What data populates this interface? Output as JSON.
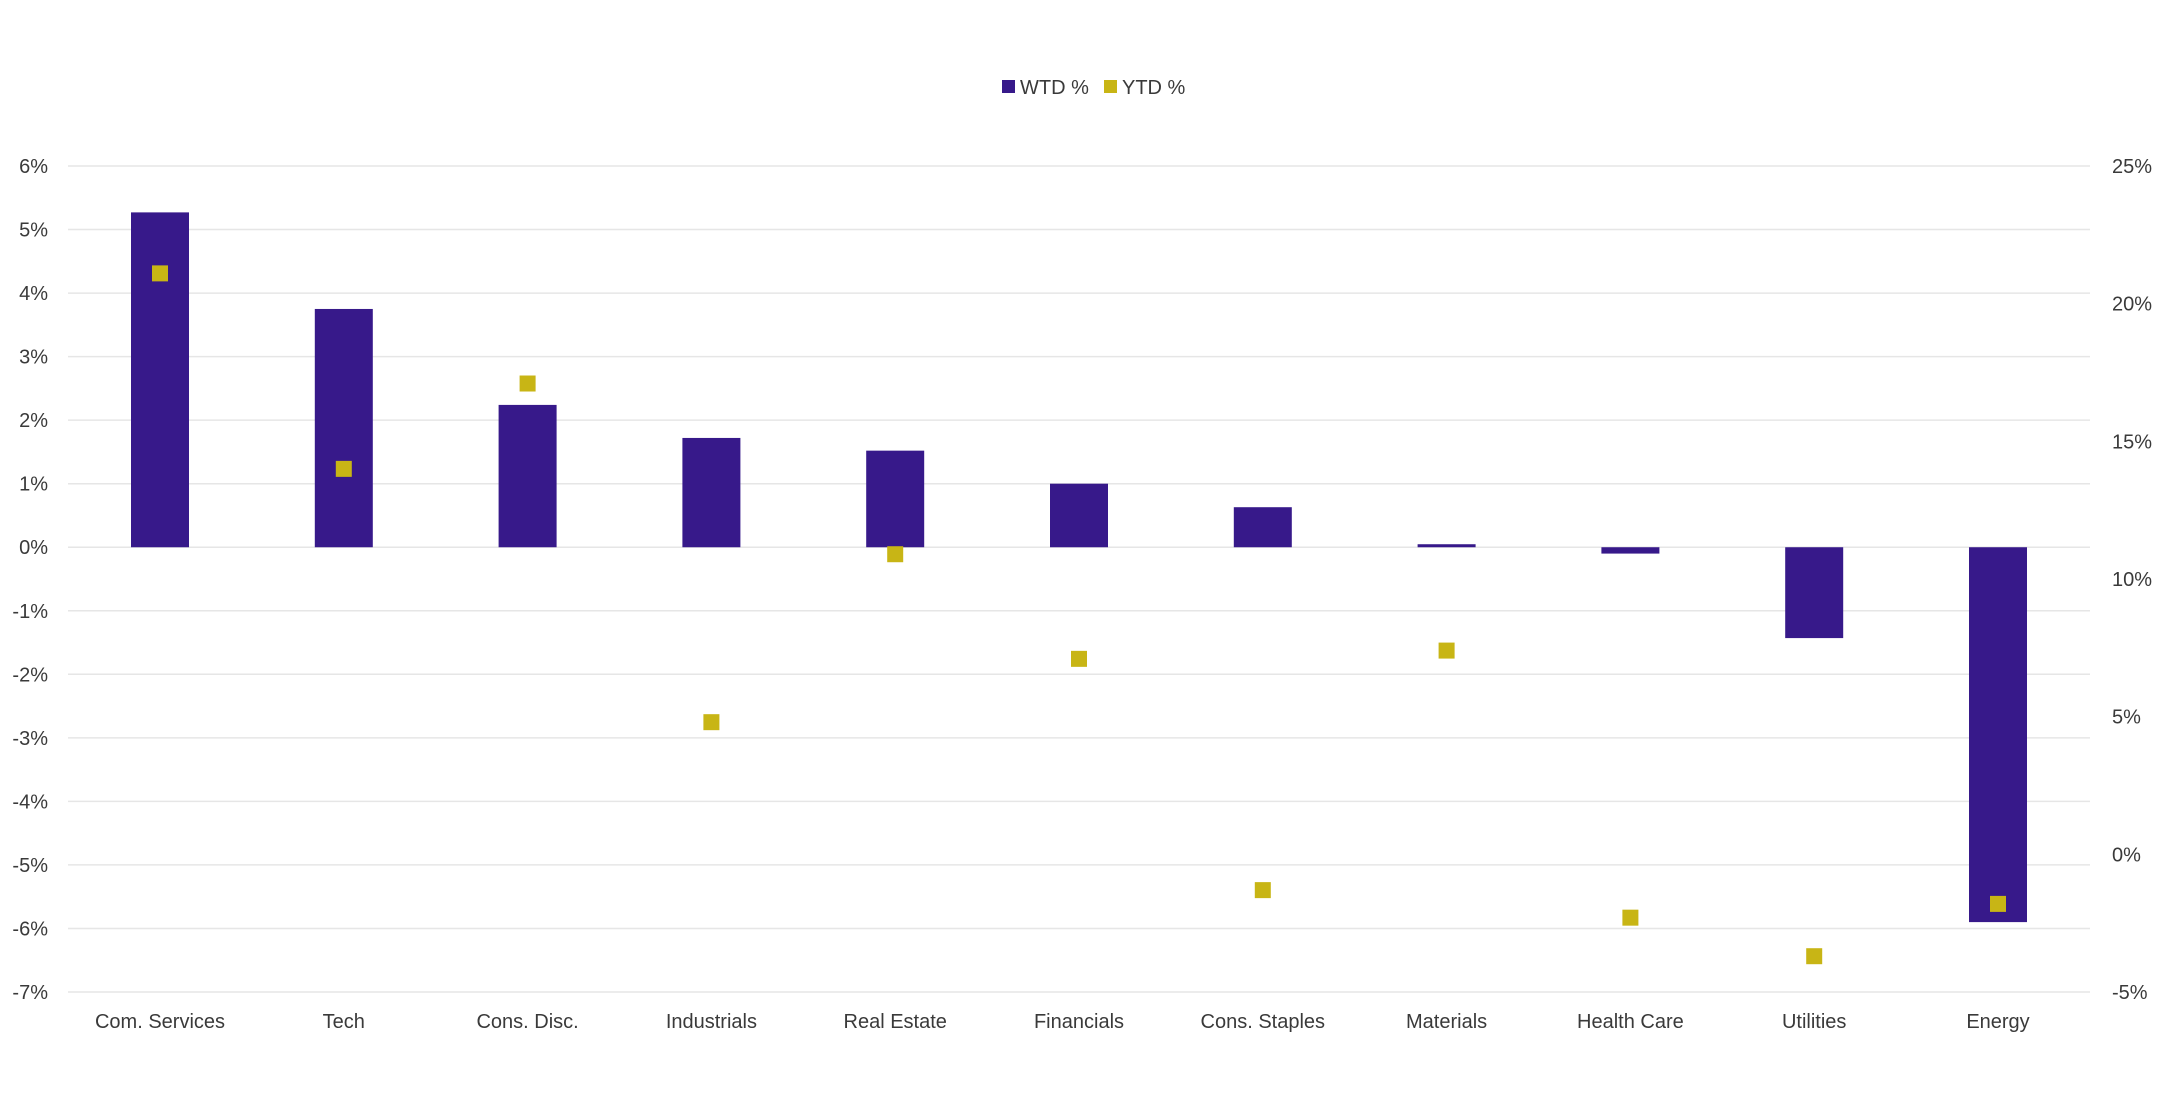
{
  "chart_data": {
    "type": "bar",
    "title": "",
    "legend": {
      "placement": "top-center",
      "entries": [
        {
          "label": "WTD %",
          "color": "#37198a",
          "marker": "square"
        },
        {
          "label": "YTD %",
          "color": "#c8b515",
          "marker": "square"
        }
      ]
    },
    "categories": [
      "Com. Services",
      "Tech",
      "Cons. Disc.",
      "Industrials",
      "Real Estate",
      "Financials",
      "Cons. Staples",
      "Materials",
      "Health Care",
      "Utilities",
      "Energy"
    ],
    "series": [
      {
        "name": "WTD %",
        "type": "bar",
        "axis": "left",
        "color": "#37198a",
        "values": [
          5.27,
          3.75,
          2.24,
          1.72,
          1.52,
          1.0,
          0.63,
          0.03,
          -0.1,
          -1.43,
          -5.9
        ]
      },
      {
        "name": "YTD %",
        "type": "scatter",
        "axis": "right",
        "color": "#c8b515",
        "values": [
          21.1,
          14.0,
          17.1,
          4.8,
          10.9,
          7.1,
          -1.3,
          7.4,
          -2.3,
          -3.7,
          -1.8
        ]
      }
    ],
    "y_left": {
      "ylim": [
        -7,
        6
      ],
      "ticks": [
        "-7%",
        "-6%",
        "-5%",
        "-4%",
        "-3%",
        "-2%",
        "-1%",
        "0%",
        "1%",
        "2%",
        "3%",
        "4%",
        "5%",
        "6%"
      ]
    },
    "y_right": {
      "ylim": [
        -5,
        25
      ],
      "ticks": [
        "-5%",
        "0%",
        "5%",
        "10%",
        "15%",
        "20%",
        "25%"
      ]
    },
    "grid": true,
    "xlabel": "",
    "ylabel": ""
  }
}
